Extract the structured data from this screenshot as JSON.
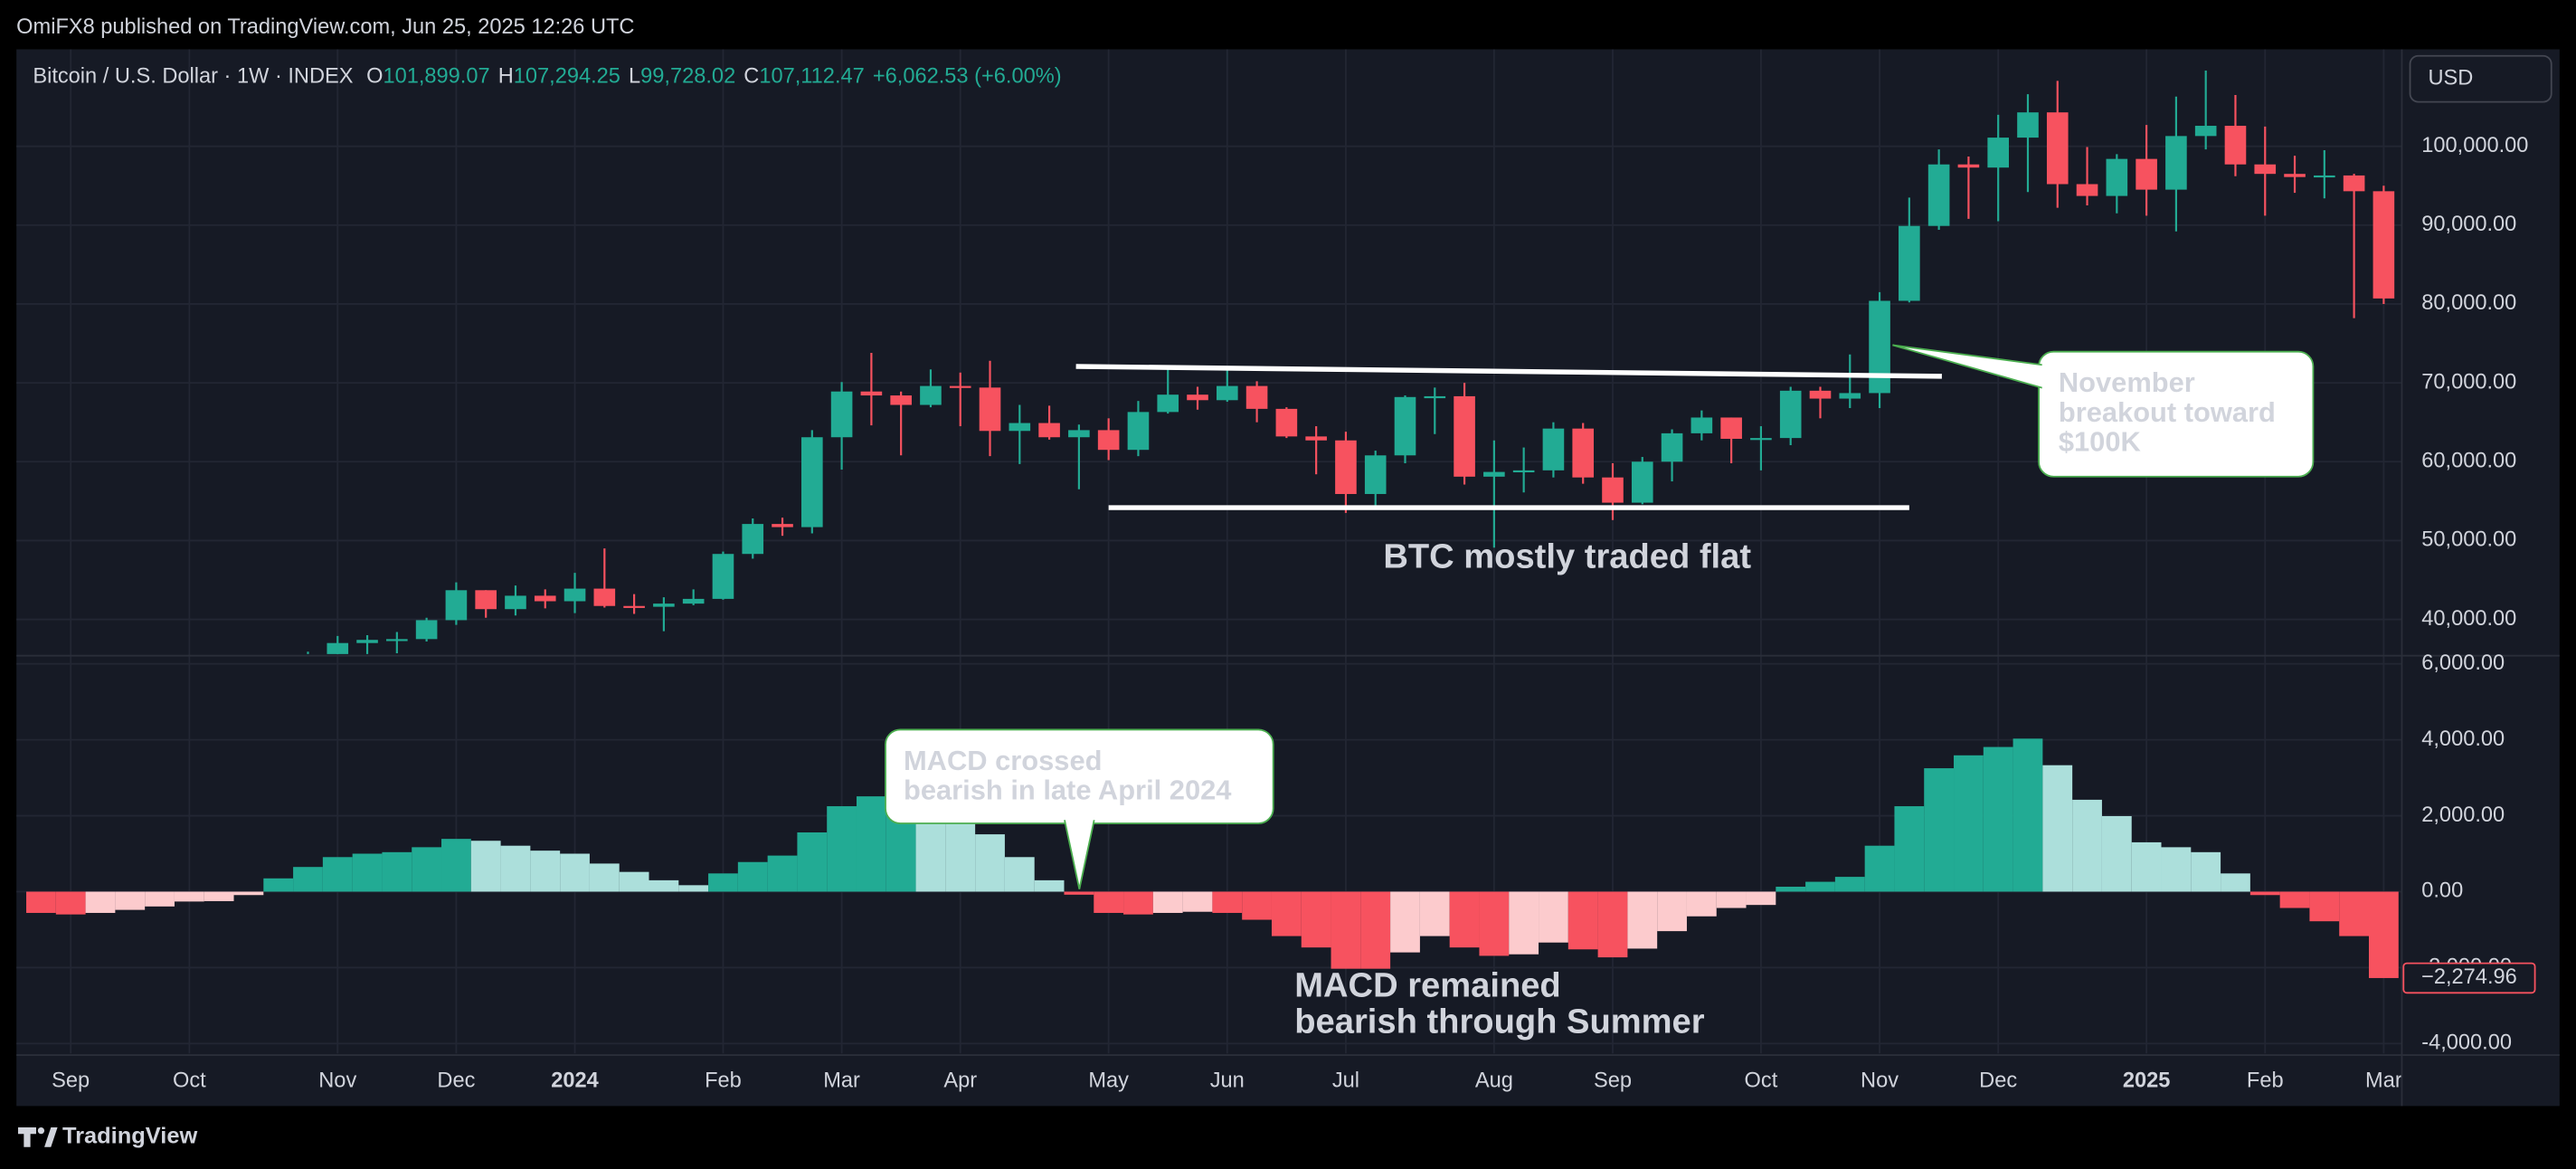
{
  "header": {
    "published": "OmiFX8 published on TradingView.com, Jun 25, 2025 12:26 UTC"
  },
  "legend": {
    "symbol": "Bitcoin / U.S. Dollar · 1W · INDEX",
    "items": [
      {
        "key": "O",
        "value": "101,899.07"
      },
      {
        "key": "H",
        "value": "107,294.25"
      },
      {
        "key": "L",
        "value": "99,728.02"
      },
      {
        "key": "C",
        "value": "107,112.47"
      }
    ],
    "change": "+6,062.53 (+6.00%)"
  },
  "currency": "USD",
  "brand": "TradingView",
  "chart_data": [
    {
      "type": "candlestick",
      "categories": [
        null,
        "Sep",
        null,
        null,
        null,
        "Oct",
        null,
        null,
        null,
        null,
        "Nov",
        null,
        null,
        null,
        "Dec",
        null,
        null,
        null,
        "2024",
        null,
        null,
        null,
        null,
        "Feb",
        null,
        null,
        null,
        "Mar",
        null,
        null,
        null,
        "Apr",
        null,
        null,
        null,
        null,
        "May",
        null,
        null,
        null,
        "Jun",
        null,
        null,
        null,
        "Jul",
        null,
        null,
        null,
        null,
        "Aug",
        null,
        null,
        null,
        "Sep",
        null,
        null,
        null,
        null,
        "Oct",
        null,
        null,
        null,
        "Nov",
        null,
        null,
        null,
        "Dec",
        null,
        null,
        null,
        null,
        "2025",
        null,
        null,
        null,
        "Feb",
        null,
        null,
        null,
        "Mar"
      ],
      "open": [
        null,
        null,
        null,
        null,
        null,
        null,
        null,
        null,
        null,
        34500,
        35000,
        37000,
        37400,
        37500,
        39900,
        43700,
        41300,
        43000,
        42300,
        43900,
        41700,
        41600,
        42000,
        42600,
        48300,
        52100,
        51700,
        63100,
        68900,
        68400,
        67200,
        69600,
        69400,
        63900,
        64900,
        63100,
        64000,
        61500,
        66300,
        68500,
        67800,
        69600,
        66700,
        63200,
        62700,
        55900,
        60800,
        68200,
        68300,
        58100,
        58700,
        58900,
        64200,
        58000,
        54800,
        60000,
        63600,
        65600,
        62900,
        63000,
        69000,
        68000,
        68700,
        80400,
        89900,
        97700,
        97300,
        101100,
        104300,
        95200,
        93700,
        98400,
        94500,
        101300,
        102600,
        97700,
        96500,
        96100,
        96300,
        94300
      ],
      "high": [
        null,
        null,
        null,
        null,
        null,
        null,
        null,
        null,
        null,
        35900,
        37900,
        38000,
        38400,
        40200,
        44700,
        43700,
        44300,
        43800,
        45900,
        49000,
        43200,
        42800,
        43800,
        48600,
        52800,
        52900,
        64000,
        70100,
        73800,
        68900,
        71700,
        71300,
        72800,
        67200,
        67100,
        64700,
        65500,
        67700,
        71900,
        69500,
        72000,
        70200,
        66900,
        64500,
        63800,
        61400,
        68400,
        69400,
        70000,
        62700,
        61800,
        65000,
        64900,
        59800,
        60600,
        64100,
        66500,
        65600,
        64500,
        69500,
        69500,
        73600,
        81500,
        93500,
        99600,
        98700,
        104000,
        106600,
        108300,
        99900,
        99000,
        102700,
        106300,
        109600,
        106500,
        102500,
        98800,
        99500,
        96500,
        95000
      ],
      "low": [
        null,
        null,
        null,
        null,
        null,
        null,
        null,
        null,
        null,
        34100,
        34500,
        34800,
        35700,
        37200,
        39300,
        40200,
        40500,
        41400,
        40800,
        41500,
        40700,
        38500,
        41800,
        42500,
        47700,
        50600,
        50900,
        59000,
        64600,
        60800,
        66900,
        64500,
        60700,
        59700,
        62800,
        56500,
        60200,
        60700,
        66100,
        66600,
        67600,
        65000,
        63000,
        58400,
        53500,
        54300,
        59800,
        63500,
        57100,
        49100,
        56100,
        58000,
        57200,
        52600,
        54600,
        57500,
        62700,
        59800,
        58900,
        62100,
        65500,
        66800,
        66800,
        80200,
        89400,
        90800,
        90500,
        94200,
        92200,
        92500,
        91500,
        91200,
        89200,
        99600,
        96200,
        91200,
        94100,
        93400,
        78200,
        80000
      ],
      "close": [
        null,
        null,
        null,
        null,
        null,
        null,
        null,
        null,
        null,
        35000,
        37000,
        37400,
        37500,
        39900,
        43700,
        41300,
        43000,
        42300,
        43900,
        41700,
        41600,
        42000,
        42600,
        48300,
        52100,
        51700,
        63100,
        68900,
        68400,
        67200,
        69600,
        69400,
        63900,
        64900,
        63100,
        64000,
        61500,
        66300,
        68500,
        67800,
        69600,
        66700,
        63200,
        62700,
        55900,
        60800,
        68200,
        68300,
        58100,
        58700,
        58900,
        64200,
        58000,
        54800,
        60000,
        63600,
        65600,
        62900,
        63000,
        69000,
        68000,
        68700,
        80400,
        89900,
        97700,
        97300,
        101100,
        104300,
        95200,
        93700,
        98400,
        94500,
        101300,
        102600,
        97700,
        96500,
        96100,
        96300,
        94300,
        80700
      ],
      "up_color": "#22ab94",
      "down_color": "#f7525f",
      "ylim": [
        35600,
        112300
      ],
      "yticks": [
        {
          "value": 40000,
          "label": "40,000.00"
        },
        {
          "value": 50000,
          "label": "50,000.00"
        },
        {
          "value": 60000,
          "label": "60,000.00"
        },
        {
          "value": 70000,
          "label": "70,000.00"
        },
        {
          "value": 80000,
          "label": "80,000.00"
        },
        {
          "value": 90000,
          "label": "90,000.00"
        },
        {
          "value": 100000,
          "label": "100,000.00"
        }
      ],
      "grid": true,
      "trendlines": [
        {
          "x": [
            34.9,
            64.1
          ],
          "y": [
            72080,
            70830
          ]
        },
        {
          "x": [
            36,
            63
          ],
          "y": [
            54170,
            54170
          ]
        }
      ],
      "annotations": [
        {
          "lines": [
            "November",
            "breakout toward",
            "$100K"
          ]
        },
        {
          "lines": [
            "BTC mostly traded flat"
          ]
        }
      ]
    },
    {
      "type": "bar",
      "values": [
        -560,
        -600,
        -560,
        -480,
        -390,
        -260,
        -250,
        -90,
        350,
        650,
        910,
        1000,
        1040,
        1170,
        1390,
        1340,
        1210,
        1080,
        1000,
        740,
        520,
        300,
        170,
        480,
        780,
        950,
        1560,
        2250,
        2510,
        2700,
        2600,
        2300,
        1510,
        910,
        300,
        -80,
        -560,
        -600,
        -560,
        -530,
        -560,
        -740,
        -1170,
        -1470,
        -2030,
        -2030,
        -1600,
        -1170,
        -1470,
        -1690,
        -1650,
        -1340,
        -1520,
        -1730,
        -1500,
        -1040,
        -650,
        -430,
        -350,
        130,
        260,
        390,
        1210,
        2250,
        3250,
        3590,
        3810,
        4030,
        3330,
        2420,
        1990,
        1300,
        1170,
        1040,
        480,
        -90,
        -430,
        -780,
        -1170,
        -2274.96
      ],
      "colors": [
        "#f7525f",
        "#f7525f",
        "#fccbcd",
        "#fccbcd",
        "#fccbcd",
        "#fccbcd",
        "#fccbcd",
        "#fccbcd",
        "#22ab94",
        "#22ab94",
        "#22ab94",
        "#22ab94",
        "#22ab94",
        "#22ab94",
        "#22ab94",
        "#acdfdb",
        "#acdfdb",
        "#acdfdb",
        "#acdfdb",
        "#acdfdb",
        "#acdfdb",
        "#acdfdb",
        "#acdfdb",
        "#22ab94",
        "#22ab94",
        "#22ab94",
        "#22ab94",
        "#22ab94",
        "#22ab94",
        "#22ab94",
        "#acdfdb",
        "#acdfdb",
        "#acdfdb",
        "#acdfdb",
        "#acdfdb",
        "#f7525f",
        "#f7525f",
        "#f7525f",
        "#fccbcd",
        "#fccbcd",
        "#f7525f",
        "#f7525f",
        "#f7525f",
        "#f7525f",
        "#f7525f",
        "#f7525f",
        "#fccbcd",
        "#fccbcd",
        "#f7525f",
        "#f7525f",
        "#fccbcd",
        "#fccbcd",
        "#f7525f",
        "#f7525f",
        "#fccbcd",
        "#fccbcd",
        "#fccbcd",
        "#fccbcd",
        "#fccbcd",
        "#22ab94",
        "#22ab94",
        "#22ab94",
        "#22ab94",
        "#22ab94",
        "#22ab94",
        "#22ab94",
        "#22ab94",
        "#22ab94",
        "#acdfdb",
        "#acdfdb",
        "#acdfdb",
        "#acdfdb",
        "#acdfdb",
        "#acdfdb",
        "#acdfdb",
        "#f7525f",
        "#f7525f",
        "#f7525f",
        "#f7525f",
        "#f7525f"
      ],
      "value_labels": [
        null,
        null,
        null,
        null,
        null,
        null,
        null,
        null,
        null,
        null,
        null,
        null,
        null,
        null,
        null,
        null,
        null,
        null,
        null,
        null,
        null,
        null,
        null,
        null,
        null,
        null,
        null,
        null,
        null,
        null,
        null,
        null,
        null,
        null,
        null,
        null,
        null,
        null,
        null,
        null,
        null,
        null,
        null,
        null,
        null,
        null,
        null,
        null,
        null,
        null,
        null,
        null,
        null,
        null,
        null,
        null,
        null,
        null,
        null,
        null,
        null,
        null,
        null,
        null,
        null,
        null,
        null,
        null,
        null,
        null,
        null,
        null,
        null,
        null,
        null,
        null,
        null,
        null,
        null,
        "−2,274.96"
      ],
      "ylim": [
        -4260,
        6170
      ],
      "yticks": [
        {
          "value": -4000,
          "label": "-4,000.00"
        },
        {
          "value": -2000,
          "label": "-2,000.00"
        },
        {
          "value": 0,
          "label": "0.00"
        },
        {
          "value": 2000,
          "label": "2,000.00"
        },
        {
          "value": 4000,
          "label": "4,000.00"
        },
        {
          "value": 6000,
          "label": "6,000.00"
        }
      ],
      "grid": true,
      "annotations": [
        {
          "lines": [
            "MACD crossed",
            "bearish in late April 2024"
          ]
        },
        {
          "lines": [
            "MACD remained",
            "bearish through Summer"
          ]
        }
      ]
    }
  ]
}
